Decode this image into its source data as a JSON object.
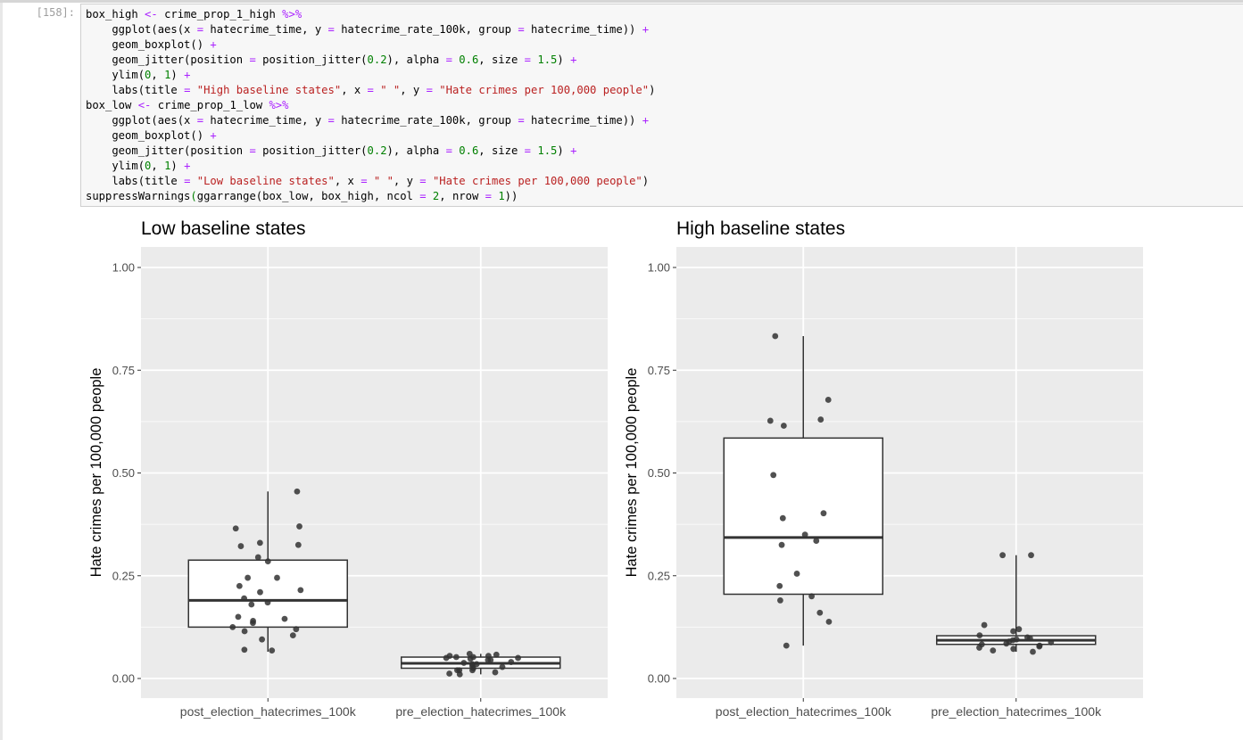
{
  "prompt": "[158]:",
  "code_lines": [
    [
      [
        "t",
        "box_high "
      ],
      [
        "o",
        "<-"
      ],
      [
        "t",
        " crime_prop_1_high "
      ],
      [
        "o",
        "%>%"
      ]
    ],
    [
      [
        "t",
        "    ggplot(aes(x "
      ],
      [
        "o",
        "="
      ],
      [
        "t",
        " hatecrime_time, y "
      ],
      [
        "o",
        "="
      ],
      [
        "t",
        " hatecrime_rate_100k, group "
      ],
      [
        "o",
        "="
      ],
      [
        "t",
        " hatecrime_time)) "
      ],
      [
        "o",
        "+"
      ]
    ],
    [
      [
        "t",
        "    geom_boxplot() "
      ],
      [
        "o",
        "+"
      ]
    ],
    [
      [
        "t",
        "    geom_jitter(position "
      ],
      [
        "o",
        "="
      ],
      [
        "t",
        " position_jitter("
      ],
      [
        "n",
        "0.2"
      ],
      [
        "t",
        "), alpha "
      ],
      [
        "o",
        "="
      ],
      [
        "t",
        " "
      ],
      [
        "n",
        "0.6"
      ],
      [
        "t",
        ", size "
      ],
      [
        "o",
        "="
      ],
      [
        "t",
        " "
      ],
      [
        "n",
        "1.5"
      ],
      [
        "t",
        ") "
      ],
      [
        "o",
        "+"
      ]
    ],
    [
      [
        "t",
        "    ylim("
      ],
      [
        "n",
        "0"
      ],
      [
        "t",
        ", "
      ],
      [
        "n",
        "1"
      ],
      [
        "t",
        ") "
      ],
      [
        "o",
        "+"
      ]
    ],
    [
      [
        "t",
        "    labs(title "
      ],
      [
        "o",
        "="
      ],
      [
        "t",
        " "
      ],
      [
        "s",
        "\"High baseline states\""
      ],
      [
        "t",
        ", x "
      ],
      [
        "o",
        "="
      ],
      [
        "t",
        " "
      ],
      [
        "s",
        "\" \""
      ],
      [
        "t",
        ", y "
      ],
      [
        "o",
        "="
      ],
      [
        "t",
        " "
      ],
      [
        "s",
        "\"Hate crimes per 100,000 people\""
      ],
      [
        "t",
        ")"
      ]
    ],
    [
      [
        "t",
        "box_low "
      ],
      [
        "o",
        "<-"
      ],
      [
        "t",
        " crime_prop_1_low "
      ],
      [
        "o",
        "%>%"
      ]
    ],
    [
      [
        "t",
        "    ggplot(aes(x "
      ],
      [
        "o",
        "="
      ],
      [
        "t",
        " hatecrime_time, y "
      ],
      [
        "o",
        "="
      ],
      [
        "t",
        " hatecrime_rate_100k, group "
      ],
      [
        "o",
        "="
      ],
      [
        "t",
        " hatecrime_time)) "
      ],
      [
        "o",
        "+"
      ]
    ],
    [
      [
        "t",
        "    geom_boxplot() "
      ],
      [
        "o",
        "+"
      ]
    ],
    [
      [
        "t",
        "    geom_jitter(position "
      ],
      [
        "o",
        "="
      ],
      [
        "t",
        " position_jitter("
      ],
      [
        "n",
        "0.2"
      ],
      [
        "t",
        "), alpha "
      ],
      [
        "o",
        "="
      ],
      [
        "t",
        " "
      ],
      [
        "n",
        "0.6"
      ],
      [
        "t",
        ", size "
      ],
      [
        "o",
        "="
      ],
      [
        "t",
        " "
      ],
      [
        "n",
        "1.5"
      ],
      [
        "t",
        ") "
      ],
      [
        "o",
        "+"
      ]
    ],
    [
      [
        "t",
        "    ylim("
      ],
      [
        "n",
        "0"
      ],
      [
        "t",
        ", "
      ],
      [
        "n",
        "1"
      ],
      [
        "t",
        ") "
      ],
      [
        "o",
        "+"
      ]
    ],
    [
      [
        "t",
        "    labs(title "
      ],
      [
        "o",
        "="
      ],
      [
        "t",
        " "
      ],
      [
        "s",
        "\"Low baseline states\""
      ],
      [
        "t",
        ", x "
      ],
      [
        "o",
        "="
      ],
      [
        "t",
        " "
      ],
      [
        "s",
        "\" \""
      ],
      [
        "t",
        ", y "
      ],
      [
        "o",
        "="
      ],
      [
        "t",
        " "
      ],
      [
        "s",
        "\"Hate crimes per 100,000 people\""
      ],
      [
        "t",
        ")"
      ]
    ],
    [
      [
        "t",
        "suppressWarnings"
      ],
      [
        "n",
        "("
      ],
      [
        "t",
        "ggarrange(box_low, box_high, ncol "
      ],
      [
        "o",
        "="
      ],
      [
        "t",
        " "
      ],
      [
        "n",
        "2"
      ],
      [
        "t",
        ", nrow "
      ],
      [
        "o",
        "="
      ],
      [
        "t",
        " "
      ],
      [
        "n",
        "1"
      ],
      [
        "t",
        "))"
      ]
    ]
  ],
  "colors": {
    "panel_bg": "#ebebeb",
    "grid": "#ffffff",
    "box_stroke": "#333333",
    "point": "#333333",
    "tick_text": "#4d4d4d"
  },
  "chart_data": [
    {
      "type": "box",
      "title": "Low baseline states",
      "xlabel": "",
      "ylabel": "Hate crimes per 100,000 people",
      "categories": [
        "post_election_hatecrimes_100k",
        "pre_election_hatecrimes_100k"
      ],
      "ylim": [
        0,
        1
      ],
      "yticks": [
        "0.00",
        "0.25",
        "0.50",
        "0.75",
        "1.00"
      ],
      "grid": true,
      "boxes": [
        {
          "category": "post_election_hatecrimes_100k",
          "lower_whisker": 0.065,
          "q1": 0.125,
          "median": 0.19,
          "q3": 0.288,
          "upper_whisker": 0.455
        },
        {
          "category": "pre_election_hatecrimes_100k",
          "lower_whisker": 0.01,
          "q1": 0.025,
          "median": 0.037,
          "q3": 0.052,
          "upper_whisker": 0.06
        }
      ],
      "points": [
        [
          1,
          0.455
        ],
        [
          1,
          0.37
        ],
        [
          1,
          0.365
        ],
        [
          1,
          0.33
        ],
        [
          1,
          0.325
        ],
        [
          1,
          0.322
        ],
        [
          1,
          0.295
        ],
        [
          1,
          0.285
        ],
        [
          1,
          0.245
        ],
        [
          1,
          0.245
        ],
        [
          1,
          0.225
        ],
        [
          1,
          0.215
        ],
        [
          1,
          0.21
        ],
        [
          1,
          0.195
        ],
        [
          1,
          0.185
        ],
        [
          1,
          0.18
        ],
        [
          1,
          0.15
        ],
        [
          1,
          0.145
        ],
        [
          1,
          0.14
        ],
        [
          1,
          0.135
        ],
        [
          1,
          0.125
        ],
        [
          1,
          0.12
        ],
        [
          1,
          0.115
        ],
        [
          1,
          0.105
        ],
        [
          1,
          0.095
        ],
        [
          1,
          0.07
        ],
        [
          1,
          0.068
        ],
        [
          2,
          0.06
        ],
        [
          2,
          0.058
        ],
        [
          2,
          0.055
        ],
        [
          2,
          0.055
        ],
        [
          2,
          0.052
        ],
        [
          2,
          0.052
        ],
        [
          2,
          0.05
        ],
        [
          2,
          0.05
        ],
        [
          2,
          0.048
        ],
        [
          2,
          0.045
        ],
        [
          2,
          0.045
        ],
        [
          2,
          0.04
        ],
        [
          2,
          0.038
        ],
        [
          2,
          0.035
        ],
        [
          2,
          0.035
        ],
        [
          2,
          0.03
        ],
        [
          2,
          0.028
        ],
        [
          2,
          0.025
        ],
        [
          2,
          0.02
        ],
        [
          2,
          0.02
        ],
        [
          2,
          0.02
        ],
        [
          2,
          0.015
        ],
        [
          2,
          0.012
        ],
        [
          2,
          0.01
        ]
      ]
    },
    {
      "type": "box",
      "title": "High baseline states",
      "xlabel": "",
      "ylabel": "Hate crimes per 100,000 people",
      "categories": [
        "post_election_hatecrimes_100k",
        "pre_election_hatecrimes_100k"
      ],
      "ylim": [
        0,
        1
      ],
      "yticks": [
        "0.00",
        "0.25",
        "0.50",
        "0.75",
        "1.00"
      ],
      "grid": true,
      "boxes": [
        {
          "category": "post_election_hatecrimes_100k",
          "lower_whisker": 0.08,
          "q1": 0.205,
          "median": 0.343,
          "q3": 0.585,
          "upper_whisker": 0.833
        },
        {
          "category": "pre_election_hatecrimes_100k",
          "lower_whisker": 0.065,
          "q1": 0.083,
          "median": 0.093,
          "q3": 0.104,
          "upper_whisker": 0.3
        }
      ],
      "points": [
        [
          1,
          0.833
        ],
        [
          1,
          0.678
        ],
        [
          1,
          0.63
        ],
        [
          1,
          0.627
        ],
        [
          1,
          0.615
        ],
        [
          1,
          0.495
        ],
        [
          1,
          0.402
        ],
        [
          1,
          0.39
        ],
        [
          1,
          0.35
        ],
        [
          1,
          0.335
        ],
        [
          1,
          0.325
        ],
        [
          1,
          0.255
        ],
        [
          1,
          0.225
        ],
        [
          1,
          0.2
        ],
        [
          1,
          0.19
        ],
        [
          1,
          0.16
        ],
        [
          1,
          0.138
        ],
        [
          1,
          0.08
        ],
        [
          2,
          0.3
        ],
        [
          2,
          0.3
        ],
        [
          2,
          0.13
        ],
        [
          2,
          0.12
        ],
        [
          2,
          0.115
        ],
        [
          2,
          0.105
        ],
        [
          2,
          0.1
        ],
        [
          2,
          0.098
        ],
        [
          2,
          0.095
        ],
        [
          2,
          0.093
        ],
        [
          2,
          0.09
        ],
        [
          2,
          0.088
        ],
        [
          2,
          0.085
        ],
        [
          2,
          0.083
        ],
        [
          2,
          0.08
        ],
        [
          2,
          0.078
        ],
        [
          2,
          0.075
        ],
        [
          2,
          0.072
        ],
        [
          2,
          0.068
        ],
        [
          2,
          0.065
        ]
      ]
    }
  ]
}
